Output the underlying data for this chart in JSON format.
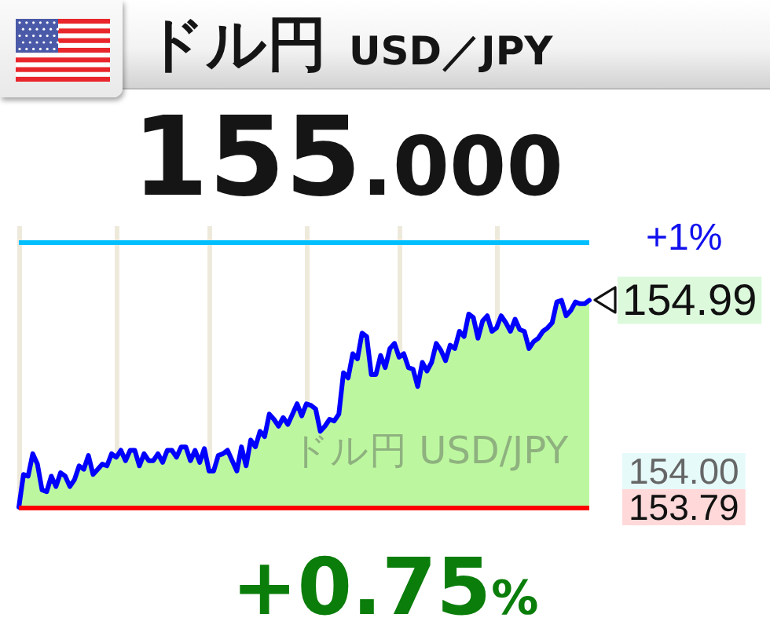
{
  "chart_data": {
    "type": "area",
    "title": "ドル円",
    "subtitle": "USD／JPY",
    "annotations": [
      "155.000",
      "+0.75%",
      "ドル円 USD/JPY",
      "+1%"
    ],
    "categories": [
      null,
      null,
      null,
      null,
      null,
      null,
      null,
      null,
      null,
      null,
      null,
      null,
      null,
      null,
      null,
      null,
      null,
      null,
      null,
      null,
      null,
      null,
      null,
      null,
      null,
      null,
      null,
      null,
      null,
      null,
      null,
      null,
      null,
      null,
      null,
      null,
      null,
      null,
      null,
      null,
      null,
      null,
      null,
      null,
      null,
      null,
      null,
      null,
      null,
      null,
      null,
      null,
      null,
      null,
      null,
      null,
      null,
      null,
      null,
      null,
      null,
      null,
      null,
      null,
      null,
      null,
      null,
      null,
      null,
      null,
      null,
      null,
      null,
      null,
      null,
      null,
      null,
      null,
      null,
      null,
      null,
      null,
      null,
      null,
      null,
      null,
      null,
      null,
      null,
      null,
      null,
      null,
      null,
      null,
      null,
      null,
      null,
      null,
      null,
      null,
      null,
      null,
      null,
      null,
      null,
      null,
      null,
      null,
      null,
      null,
      null,
      null,
      null,
      null,
      null,
      null,
      null,
      null,
      null,
      null,
      null,
      null,
      null,
      null
    ],
    "series": [
      {
        "color": "#bcf7a0",
        "values": [
          153.79,
          153.98,
          153.97,
          154.1,
          154.04,
          153.89,
          153.88,
          153.97,
          153.91,
          153.99,
          153.97,
          153.91,
          153.95,
          154.03,
          154.01,
          154.09,
          153.98,
          154.01,
          154.04,
          154.03,
          154.1,
          154.08,
          154.12,
          154.06,
          154.12,
          154.12,
          154.03,
          154.1,
          154.06,
          154.06,
          154.1,
          154.05,
          154.12,
          154.12,
          154.08,
          154.14,
          154.14,
          154.06,
          154.12,
          154.05,
          154.13,
          154.0,
          154.0,
          154.09,
          154.1,
          154.12,
          154.06,
          154.0,
          154.14,
          154.03,
          154.18,
          154.14,
          154.23,
          154.2,
          154.33,
          154.3,
          154.26,
          154.31,
          154.27,
          154.33,
          154.39,
          154.32,
          154.39,
          154.38,
          154.36,
          154.23,
          154.26,
          154.3,
          154.29,
          154.33,
          154.57,
          154.54,
          154.68,
          154.65,
          154.8,
          154.78,
          154.56,
          154.56,
          154.67,
          154.6,
          154.71,
          154.74,
          154.66,
          154.68,
          154.6,
          154.59,
          154.49,
          154.63,
          154.58,
          154.63,
          154.74,
          154.7,
          154.64,
          154.73,
          154.71,
          154.81,
          154.78,
          154.91,
          154.89,
          154.77,
          154.87,
          154.9,
          154.81,
          154.83,
          154.9,
          154.86,
          154.81,
          154.88,
          154.82,
          154.81,
          154.71,
          154.75,
          154.77,
          154.81,
          154.83,
          154.86,
          154.98,
          154.99,
          154.9,
          154.93,
          154.98,
          154.97,
          154.97,
          154.99
        ],
        "value_labels": [
          null,
          null,
          null,
          null,
          null,
          null,
          null,
          null,
          null,
          null,
          null,
          null,
          null,
          null,
          null,
          null,
          null,
          null,
          null,
          null,
          null,
          null,
          null,
          null,
          null,
          null,
          null,
          null,
          null,
          null,
          null,
          null,
          null,
          null,
          null,
          null,
          null,
          null,
          null,
          null,
          null,
          null,
          null,
          null,
          null,
          null,
          null,
          null,
          null,
          null,
          null,
          null,
          null,
          null,
          null,
          null,
          null,
          null,
          null,
          null,
          null,
          null,
          null,
          null,
          null,
          null,
          null,
          null,
          null,
          null,
          null,
          null,
          null,
          null,
          null,
          null,
          null,
          null,
          null,
          null,
          null,
          null,
          null,
          null,
          null,
          null,
          null,
          null,
          null,
          null,
          null,
          null,
          null,
          null,
          null,
          null,
          null,
          null,
          null,
          null,
          null,
          null,
          null,
          null,
          null,
          null,
          null,
          null,
          null,
          null,
          null,
          null,
          null,
          null,
          null,
          null,
          null,
          null,
          null,
          null,
          null,
          null,
          null,
          "154.99"
        ]
      }
    ],
    "ylim": [
      153.79,
      155.42
    ],
    "yticks": [
      {
        "value": 153.79,
        "label": "153.79"
      },
      {
        "value": 154,
        "label": "154.00"
      }
    ],
    "ref_lines": [
      {
        "axis": "y",
        "value": 155.33,
        "color": "#00bfff"
      },
      {
        "axis": "y",
        "value": 153.79,
        "color": "#ff0000"
      }
    ],
    "grid": "x",
    "tick_labels": "y"
  }
}
